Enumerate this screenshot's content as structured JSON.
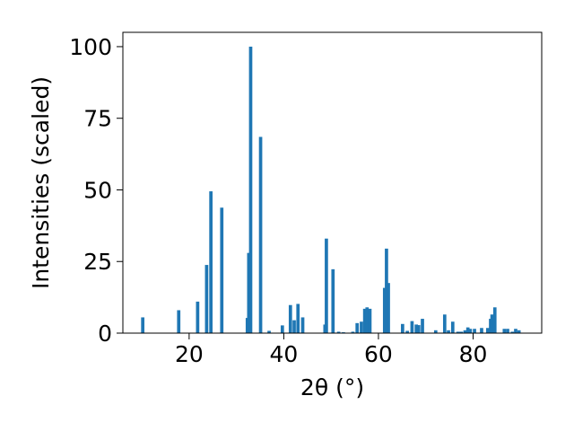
{
  "chart_data": {
    "type": "bar",
    "title": "",
    "xlabel": "2θ (°)",
    "ylabel": "Intensities (scaled)",
    "xlim": [
      6.0,
      94.5
    ],
    "ylim": [
      0,
      105
    ],
    "xticks": [
      20,
      40,
      60,
      80
    ],
    "yticks": [
      0,
      25,
      50,
      75,
      100
    ],
    "grid": false,
    "legend": "none",
    "bar_color": "#1f77b4",
    "bar_width": 0.7,
    "series": [
      {
        "x": [
          10.2,
          17.8,
          21.8,
          23.7,
          24.6,
          26.9,
          32.3,
          32.6,
          33.0,
          35.1,
          36.9,
          39.7,
          41.4,
          42.2,
          43.0,
          44.0,
          48.7,
          49.0,
          50.4,
          51.6,
          52.6,
          54.6,
          55.5,
          56.4,
          57.1,
          57.6,
          58.2,
          61.3,
          61.7,
          62.1,
          65.1,
          66.1,
          67.1,
          68.0,
          68.5,
          69.3,
          72.1,
          74.0,
          74.8,
          75.7,
          76.8,
          77.5,
          78.3,
          78.9,
          79.4,
          80.3,
          81.8,
          83.1,
          83.7,
          84.0,
          84.6,
          86.6,
          87.3,
          88.3,
          89.0,
          89.7
        ],
        "values": [
          5.5,
          8.0,
          11.0,
          23.8,
          49.5,
          43.8,
          5.3,
          28.0,
          100.0,
          68.5,
          0.8,
          2.7,
          9.8,
          4.5,
          10.2,
          5.5,
          3.0,
          33.0,
          22.3,
          0.5,
          0.3,
          0.5,
          3.5,
          4.0,
          8.5,
          9.0,
          8.5,
          15.8,
          29.5,
          17.5,
          3.2,
          0.8,
          4.2,
          3.0,
          2.8,
          5.0,
          1.0,
          6.5,
          1.0,
          4.0,
          0.5,
          0.5,
          1.0,
          2.0,
          1.5,
          1.5,
          1.8,
          1.8,
          5.0,
          6.5,
          9.0,
          1.5,
          1.5,
          0.5,
          1.5,
          1.0
        ]
      }
    ]
  }
}
